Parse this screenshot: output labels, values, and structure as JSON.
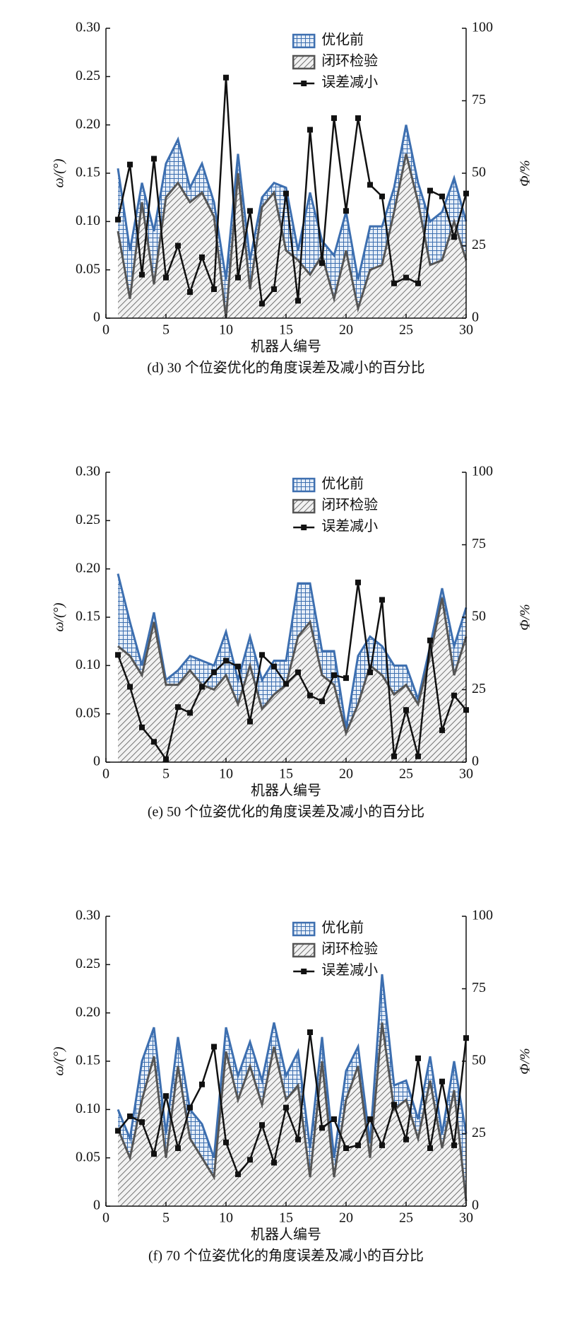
{
  "chart_data": [
    {
      "type": "area",
      "caption": "(d) 30 个位姿优化的角度误差及减小的百分比",
      "xlabel": "机器人编号",
      "ylabel": "ω/(°)",
      "y2label": "Φ/%",
      "x": [
        1,
        2,
        3,
        4,
        5,
        6,
        7,
        8,
        9,
        10,
        11,
        12,
        13,
        14,
        15,
        16,
        17,
        18,
        19,
        20,
        21,
        22,
        23,
        24,
        25,
        26,
        27,
        28,
        29,
        30
      ],
      "xlim": [
        0,
        30
      ],
      "xticks": [
        0,
        5,
        10,
        15,
        20,
        25,
        30
      ],
      "ylim": [
        0,
        0.3
      ],
      "yticks": [
        0,
        0.05,
        {
          "value": 0.1,
          "label": "0.10"
        },
        0.15,
        {
          "value": 0.2,
          "label": "0.20"
        },
        0.25,
        {
          "value": 0.3,
          "label": "0.30"
        }
      ],
      "y2lim": [
        0,
        100
      ],
      "y2ticks": [
        0,
        25,
        50,
        75,
        100
      ],
      "legend": "upper right",
      "series": [
        {
          "name": "优化前",
          "type": "area",
          "fill_pattern": "grid",
          "color": "#3d6fb0",
          "values": [
            0.155,
            0.07,
            0.14,
            0.09,
            0.16,
            0.185,
            0.135,
            0.16,
            0.12,
            0.04,
            0.17,
            0.06,
            0.125,
            0.14,
            0.135,
            0.07,
            0.13,
            0.08,
            0.065,
            0.11,
            0.04,
            0.095,
            0.095,
            0.135,
            0.2,
            0.14,
            0.1,
            0.11,
            0.145,
            0.1
          ]
        },
        {
          "name": "闭环检验",
          "type": "area",
          "fill_pattern": "hatch",
          "color": "#555555",
          "values": [
            0.09,
            0.02,
            0.12,
            0.035,
            0.125,
            0.14,
            0.12,
            0.13,
            0.105,
            0,
            0.15,
            0.03,
            0.115,
            0.13,
            0.07,
            0.06,
            0.045,
            0.065,
            0.02,
            0.07,
            0.01,
            0.05,
            0.055,
            0.11,
            0.17,
            0.12,
            0.055,
            0.06,
            0.1,
            0.06
          ]
        },
        {
          "name": "误差减小",
          "type": "line",
          "axis": "y2",
          "color": "#111111",
          "values": [
            34,
            53,
            15,
            55,
            14,
            25,
            9,
            21,
            10,
            83,
            14,
            37,
            5,
            10,
            43,
            6,
            65,
            19,
            69,
            37,
            69,
            46,
            42,
            12,
            14,
            12,
            44,
            42,
            28,
            43
          ]
        }
      ]
    },
    {
      "type": "area",
      "caption": "(e) 50 个位姿优化的角度误差及减小的百分比",
      "xlabel": "机器人编号",
      "ylabel": "ω/(°)",
      "y2label": "Φ/%",
      "x": [
        1,
        2,
        3,
        4,
        5,
        6,
        7,
        8,
        9,
        10,
        11,
        12,
        13,
        14,
        15,
        16,
        17,
        18,
        19,
        20,
        21,
        22,
        23,
        24,
        25,
        26,
        27,
        28,
        29,
        30
      ],
      "xlim": [
        0,
        30
      ],
      "xticks": [
        0,
        5,
        10,
        15,
        20,
        25,
        30
      ],
      "ylim": [
        0,
        0.3
      ],
      "yticks": [
        0,
        0.05,
        {
          "value": 0.1,
          "label": "0.10"
        },
        0.15,
        {
          "value": 0.2,
          "label": "0.20"
        },
        0.25,
        {
          "value": 0.3,
          "label": "0.30"
        }
      ],
      "y2lim": [
        0,
        100
      ],
      "y2ticks": [
        0,
        25,
        50,
        75,
        100
      ],
      "legend": "upper right",
      "series": [
        {
          "name": "优化前",
          "type": "area",
          "fill_pattern": "grid",
          "color": "#3d6fb0",
          "values": [
            0.195,
            0.145,
            0.1,
            0.155,
            0.085,
            0.095,
            0.11,
            0.105,
            0.1,
            0.135,
            0.085,
            0.13,
            0.085,
            0.105,
            0.105,
            0.185,
            0.185,
            0.115,
            0.115,
            0.035,
            0.11,
            0.13,
            0.12,
            0.1,
            0.1,
            0.065,
            0.12,
            0.18,
            0.12,
            0.16
          ]
        },
        {
          "name": "闭环检验",
          "type": "area",
          "fill_pattern": "hatch",
          "color": "#555555",
          "values": [
            0.12,
            0.11,
            0.09,
            0.145,
            0.08,
            0.08,
            0.095,
            0.08,
            0.075,
            0.09,
            0.06,
            0.1,
            0.055,
            0.07,
            0.08,
            0.13,
            0.145,
            0.09,
            0.08,
            0.03,
            0.06,
            0.1,
            0.09,
            0.07,
            0.08,
            0.06,
            0.11,
            0.17,
            0.09,
            0.13
          ]
        },
        {
          "name": "误差减小",
          "type": "line",
          "axis": "y2",
          "color": "#111111",
          "values": [
            37,
            26,
            12,
            7,
            1,
            19,
            17,
            26,
            31,
            35,
            33,
            14,
            37,
            33,
            27,
            31,
            23,
            21,
            30,
            29,
            62,
            31,
            56,
            2,
            18,
            2,
            42,
            11,
            23,
            18
          ]
        }
      ]
    },
    {
      "type": "area",
      "caption": "(f) 70 个位姿优化的角度误差及减小的百分比",
      "xlabel": "机器人编号",
      "ylabel": "ω/(°)",
      "y2label": "Φ/%",
      "x": [
        1,
        2,
        3,
        4,
        5,
        6,
        7,
        8,
        9,
        10,
        11,
        12,
        13,
        14,
        15,
        16,
        17,
        18,
        19,
        20,
        21,
        22,
        23,
        24,
        25,
        26,
        27,
        28,
        29,
        30
      ],
      "xlim": [
        0,
        30
      ],
      "xticks": [
        0,
        5,
        10,
        15,
        20,
        25,
        30
      ],
      "ylim": [
        0,
        0.3
      ],
      "yticks": [
        0,
        0.05,
        {
          "value": 0.1,
          "label": "0.10"
        },
        0.15,
        {
          "value": 0.2,
          "label": "0.20"
        },
        0.25,
        {
          "value": 0.3,
          "label": "0.30"
        }
      ],
      "y2lim": [
        0,
        100
      ],
      "y2ticks": [
        0,
        25,
        50,
        75,
        100
      ],
      "legend": "upper right",
      "series": [
        {
          "name": "优化前",
          "type": "area",
          "fill_pattern": "grid",
          "color": "#3d6fb0",
          "values": [
            0.1,
            0.07,
            0.15,
            0.185,
            0.075,
            0.175,
            0.1,
            0.085,
            0.05,
            0.185,
            0.135,
            0.17,
            0.13,
            0.19,
            0.135,
            0.16,
            0.06,
            0.175,
            0.05,
            0.14,
            0.165,
            0.065,
            0.24,
            0.125,
            0.13,
            0.09,
            0.155,
            0.075,
            0.15,
            0.075
          ]
        },
        {
          "name": "闭环检验",
          "type": "area",
          "fill_pattern": "hatch",
          "color": "#555555",
          "values": [
            0.08,
            0.05,
            0.11,
            0.155,
            0.05,
            0.145,
            0.07,
            0.05,
            0.03,
            0.16,
            0.11,
            0.145,
            0.105,
            0.165,
            0.11,
            0.125,
            0.03,
            0.15,
            0.03,
            0.11,
            0.145,
            0.05,
            0.19,
            0.1,
            0.11,
            0.07,
            0.13,
            0.06,
            0.12,
            0.005
          ]
        },
        {
          "name": "误差减小",
          "type": "line",
          "axis": "y2",
          "color": "#111111",
          "values": [
            26,
            31,
            29,
            18,
            38,
            20,
            34,
            42,
            55,
            22,
            11,
            16,
            28,
            15,
            34,
            23,
            60,
            27,
            30,
            20,
            21,
            30,
            21,
            35,
            23,
            51,
            20,
            43,
            21,
            58
          ]
        }
      ]
    }
  ]
}
